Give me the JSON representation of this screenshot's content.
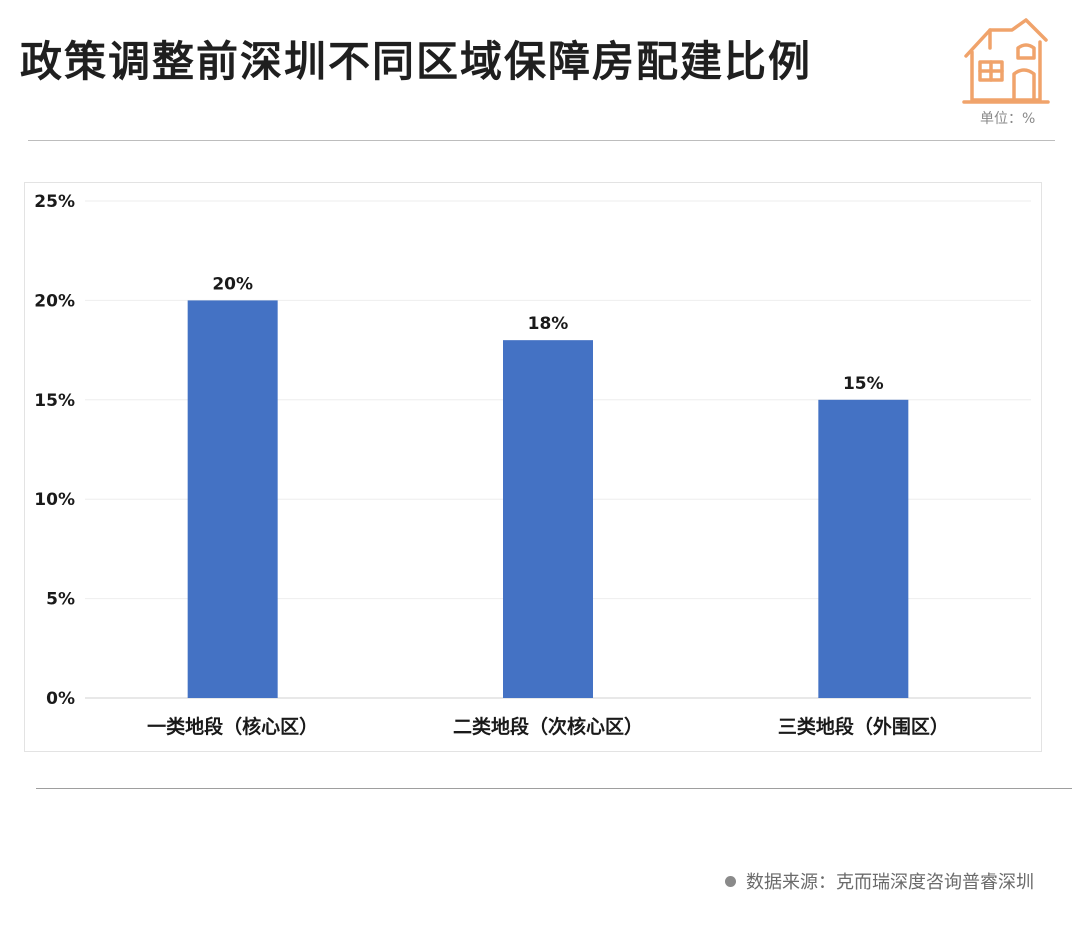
{
  "header": {
    "title": "政策调整前深圳不同区域保障房配建比例",
    "unit": "单位：%",
    "logo_icon": "house-icon",
    "logo_color": "#f0a36b"
  },
  "footer": {
    "source": "数据来源：克而瑞深度咨询普睿深圳"
  },
  "chart_data": {
    "type": "bar",
    "categories": [
      "一类地段（核心区）",
      "二类地段（次核心区）",
      "三类地段（外围区）"
    ],
    "values": [
      20,
      18,
      15
    ],
    "data_labels": [
      "20%",
      "18%",
      "15%"
    ],
    "yticks": [
      "0%",
      "5%",
      "10%",
      "15%",
      "20%",
      "25%"
    ],
    "ylim": [
      0,
      25
    ],
    "grid": true,
    "bar_color": "#4472c4",
    "title": "",
    "xlabel": "",
    "ylabel": ""
  }
}
